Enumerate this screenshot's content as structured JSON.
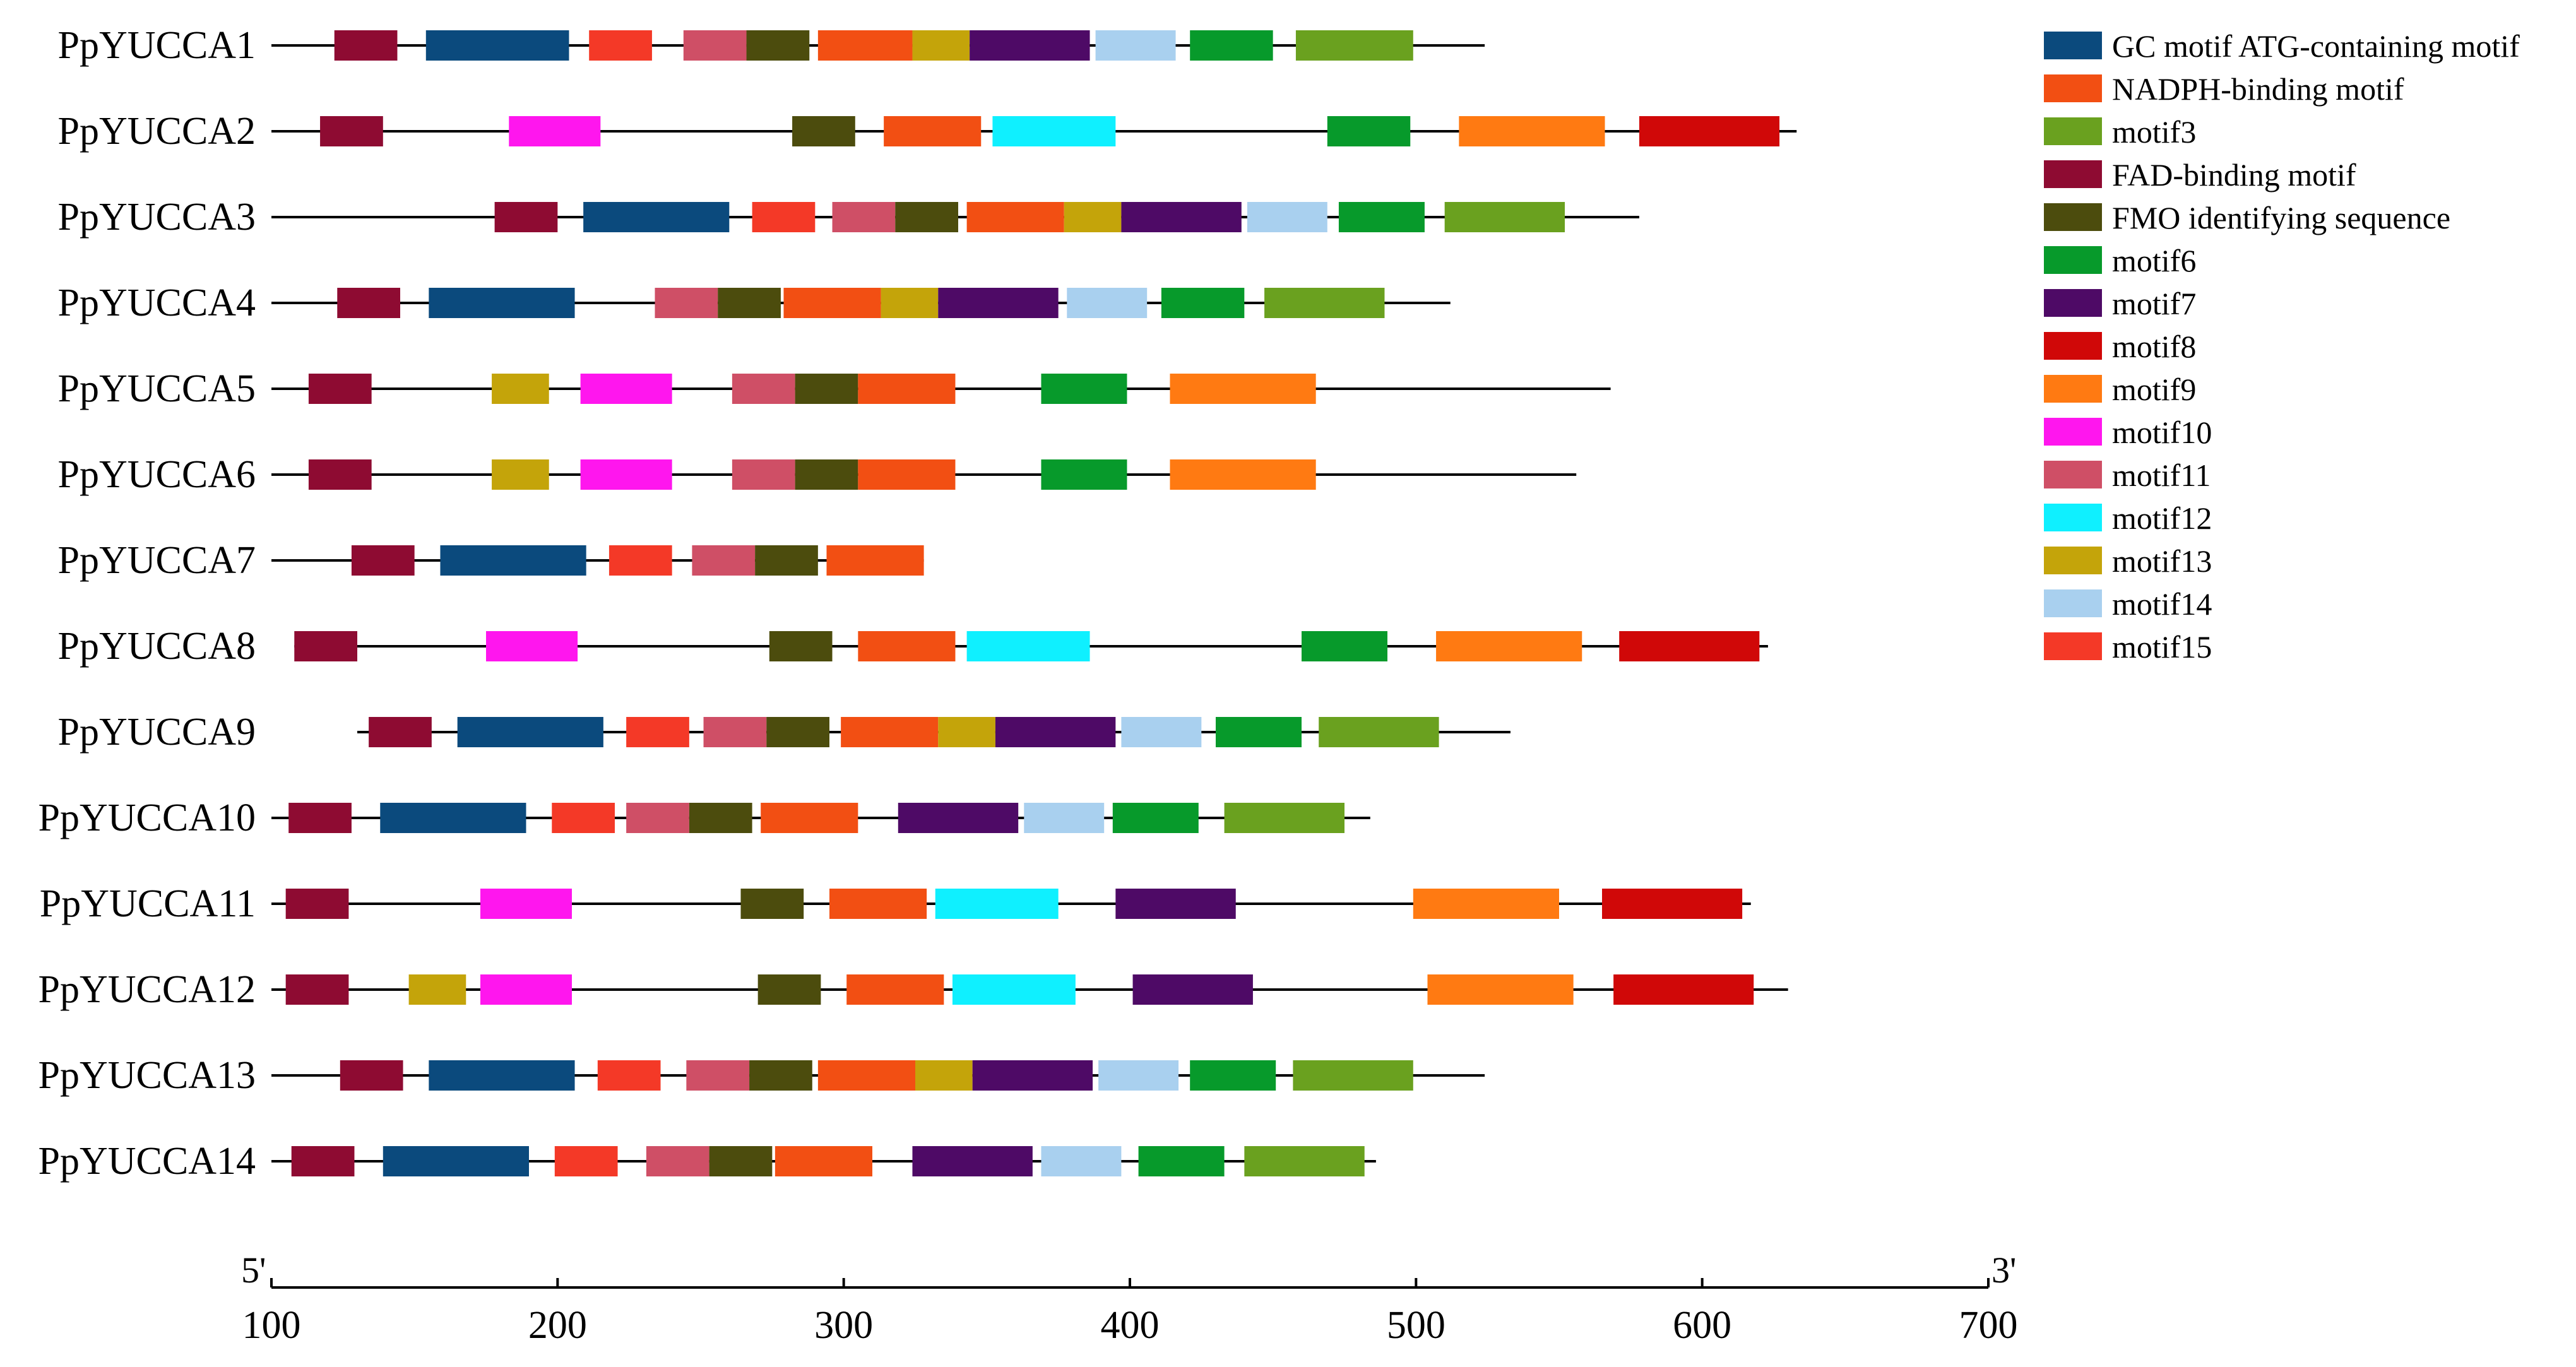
{
  "figure": {
    "type": "motif-diagram",
    "axis": {
      "min": 100,
      "max": 700,
      "ticks": [
        "100",
        "200",
        "300",
        "400",
        "500",
        "600",
        "700"
      ],
      "left_end_label": "5'",
      "right_end_label": "3'"
    },
    "legend": [
      {
        "id": "gc",
        "label": "GC motif ATG-containing motif",
        "color": "#0b4a7d"
      },
      {
        "id": "nadph",
        "label": "NADPH-binding motif",
        "color": "#f24f13"
      },
      {
        "id": "m3",
        "label": "motif3",
        "color": "#6aa11f"
      },
      {
        "id": "fad",
        "label": "FAD-binding motif",
        "color": "#8e0b32"
      },
      {
        "id": "fmo",
        "label": "FMO identifying sequence",
        "color": "#4c4c0d"
      },
      {
        "id": "m6",
        "label": "motif6",
        "color": "#079a2b"
      },
      {
        "id": "m7",
        "label": "motif7",
        "color": "#4e0a66"
      },
      {
        "id": "m8",
        "label": "motif8",
        "color": "#d00808"
      },
      {
        "id": "m9",
        "label": "motif9",
        "color": "#ff7a12"
      },
      {
        "id": "m10",
        "label": "motif10",
        "color": "#ff16ee"
      },
      {
        "id": "m11",
        "label": "motif11",
        "color": "#cf4f66"
      },
      {
        "id": "m12",
        "label": "motif12",
        "color": "#0ff0ff"
      },
      {
        "id": "m13",
        "label": "motif13",
        "color": "#c4a40a"
      },
      {
        "id": "m14",
        "label": "motif14",
        "color": "#a9d0ef"
      },
      {
        "id": "m15",
        "label": "motif15",
        "color": "#f43927"
      }
    ],
    "genes": [
      {
        "name": "PpYUCCA1",
        "start": 100,
        "end": 524,
        "motifs": [
          {
            "motif": "fad",
            "start": 122,
            "end": 144
          },
          {
            "motif": "gc",
            "start": 154,
            "end": 204
          },
          {
            "motif": "m15",
            "start": 211,
            "end": 233
          },
          {
            "motif": "m11",
            "start": 244,
            "end": 266
          },
          {
            "motif": "fmo",
            "start": 266,
            "end": 288
          },
          {
            "motif": "nadph",
            "start": 291,
            "end": 324
          },
          {
            "motif": "m13",
            "start": 324,
            "end": 344
          },
          {
            "motif": "m7",
            "start": 344,
            "end": 386
          },
          {
            "motif": "m14",
            "start": 388,
            "end": 416
          },
          {
            "motif": "m6",
            "start": 421,
            "end": 450
          },
          {
            "motif": "m3",
            "start": 458,
            "end": 499
          }
        ]
      },
      {
        "name": "PpYUCCA2",
        "start": 100,
        "end": 633,
        "motifs": [
          {
            "motif": "fad",
            "start": 117,
            "end": 139
          },
          {
            "motif": "m10",
            "start": 183,
            "end": 215
          },
          {
            "motif": "fmo",
            "start": 282,
            "end": 304
          },
          {
            "motif": "nadph",
            "start": 314,
            "end": 348
          },
          {
            "motif": "m12",
            "start": 352,
            "end": 395
          },
          {
            "motif": "m6",
            "start": 469,
            "end": 498
          },
          {
            "motif": "m9",
            "start": 515,
            "end": 566
          },
          {
            "motif": "m8",
            "start": 578,
            "end": 627
          }
        ]
      },
      {
        "name": "PpYUCCA3",
        "start": 100,
        "end": 578,
        "motifs": [
          {
            "motif": "fad",
            "start": 178,
            "end": 200
          },
          {
            "motif": "gc",
            "start": 209,
            "end": 260
          },
          {
            "motif": "m15",
            "start": 268,
            "end": 290
          },
          {
            "motif": "m11",
            "start": 296,
            "end": 318
          },
          {
            "motif": "fmo",
            "start": 318,
            "end": 340
          },
          {
            "motif": "nadph",
            "start": 343,
            "end": 377
          },
          {
            "motif": "m13",
            "start": 377,
            "end": 397
          },
          {
            "motif": "m7",
            "start": 397,
            "end": 439
          },
          {
            "motif": "m14",
            "start": 441,
            "end": 469
          },
          {
            "motif": "m6",
            "start": 473,
            "end": 503
          },
          {
            "motif": "m3",
            "start": 510,
            "end": 552
          }
        ]
      },
      {
        "name": "PpYUCCA4",
        "start": 100,
        "end": 512,
        "motifs": [
          {
            "motif": "fad",
            "start": 123,
            "end": 145
          },
          {
            "motif": "gc",
            "start": 155,
            "end": 206
          },
          {
            "motif": "m11",
            "start": 234,
            "end": 256
          },
          {
            "motif": "fmo",
            "start": 256,
            "end": 278
          },
          {
            "motif": "nadph",
            "start": 279,
            "end": 313
          },
          {
            "motif": "m13",
            "start": 313,
            "end": 333
          },
          {
            "motif": "m7",
            "start": 333,
            "end": 375
          },
          {
            "motif": "m14",
            "start": 378,
            "end": 406
          },
          {
            "motif": "m6",
            "start": 411,
            "end": 440
          },
          {
            "motif": "m3",
            "start": 447,
            "end": 489
          }
        ]
      },
      {
        "name": "PpYUCCA5",
        "start": 100,
        "end": 568,
        "motifs": [
          {
            "motif": "fad",
            "start": 113,
            "end": 135
          },
          {
            "motif": "m13",
            "start": 177,
            "end": 197
          },
          {
            "motif": "m10",
            "start": 208,
            "end": 240
          },
          {
            "motif": "m11",
            "start": 261,
            "end": 283
          },
          {
            "motif": "fmo",
            "start": 283,
            "end": 305
          },
          {
            "motif": "nadph",
            "start": 305,
            "end": 339
          },
          {
            "motif": "m6",
            "start": 369,
            "end": 399
          },
          {
            "motif": "m9",
            "start": 414,
            "end": 465
          }
        ]
      },
      {
        "name": "PpYUCCA6",
        "start": 100,
        "end": 556,
        "motifs": [
          {
            "motif": "fad",
            "start": 113,
            "end": 135
          },
          {
            "motif": "m13",
            "start": 177,
            "end": 197
          },
          {
            "motif": "m10",
            "start": 208,
            "end": 240
          },
          {
            "motif": "m11",
            "start": 261,
            "end": 283
          },
          {
            "motif": "fmo",
            "start": 283,
            "end": 305
          },
          {
            "motif": "nadph",
            "start": 305,
            "end": 339
          },
          {
            "motif": "m6",
            "start": 369,
            "end": 399
          },
          {
            "motif": "m9",
            "start": 414,
            "end": 465
          }
        ]
      },
      {
        "name": "PpYUCCA7",
        "start": 100,
        "end": 328,
        "motifs": [
          {
            "motif": "fad",
            "start": 128,
            "end": 150
          },
          {
            "motif": "gc",
            "start": 159,
            "end": 210
          },
          {
            "motif": "m15",
            "start": 218,
            "end": 240
          },
          {
            "motif": "m11",
            "start": 247,
            "end": 269
          },
          {
            "motif": "fmo",
            "start": 269,
            "end": 291
          },
          {
            "motif": "nadph",
            "start": 294,
            "end": 328
          }
        ]
      },
      {
        "name": "PpYUCCA8",
        "start": 108,
        "end": 623,
        "motifs": [
          {
            "motif": "fad",
            "start": 108,
            "end": 130
          },
          {
            "motif": "m10",
            "start": 175,
            "end": 207
          },
          {
            "motif": "fmo",
            "start": 274,
            "end": 296
          },
          {
            "motif": "nadph",
            "start": 305,
            "end": 339
          },
          {
            "motif": "m12",
            "start": 343,
            "end": 386
          },
          {
            "motif": "m6",
            "start": 460,
            "end": 490
          },
          {
            "motif": "m9",
            "start": 507,
            "end": 558
          },
          {
            "motif": "m8",
            "start": 571,
            "end": 620
          }
        ]
      },
      {
        "name": "PpYUCCA9",
        "start": 130,
        "end": 533,
        "motifs": [
          {
            "motif": "fad",
            "start": 134,
            "end": 156
          },
          {
            "motif": "gc",
            "start": 165,
            "end": 216
          },
          {
            "motif": "m15",
            "start": 224,
            "end": 246
          },
          {
            "motif": "m11",
            "start": 251,
            "end": 273
          },
          {
            "motif": "fmo",
            "start": 273,
            "end": 295
          },
          {
            "motif": "nadph",
            "start": 299,
            "end": 333
          },
          {
            "motif": "m13",
            "start": 333,
            "end": 353
          },
          {
            "motif": "m7",
            "start": 353,
            "end": 395
          },
          {
            "motif": "m14",
            "start": 397,
            "end": 425
          },
          {
            "motif": "m6",
            "start": 430,
            "end": 460
          },
          {
            "motif": "m3",
            "start": 466,
            "end": 508
          }
        ]
      },
      {
        "name": "PpYUCCA10",
        "start": 100,
        "end": 484,
        "motifs": [
          {
            "motif": "fad",
            "start": 106,
            "end": 128
          },
          {
            "motif": "gc",
            "start": 138,
            "end": 189
          },
          {
            "motif": "m15",
            "start": 198,
            "end": 220
          },
          {
            "motif": "m11",
            "start": 224,
            "end": 246
          },
          {
            "motif": "fmo",
            "start": 246,
            "end": 268
          },
          {
            "motif": "nadph",
            "start": 271,
            "end": 305
          },
          {
            "motif": "m7",
            "start": 319,
            "end": 361
          },
          {
            "motif": "m14",
            "start": 363,
            "end": 391
          },
          {
            "motif": "m6",
            "start": 394,
            "end": 424
          },
          {
            "motif": "m3",
            "start": 433,
            "end": 475
          }
        ]
      },
      {
        "name": "PpYUCCA11",
        "start": 100,
        "end": 617,
        "motifs": [
          {
            "motif": "fad",
            "start": 105,
            "end": 127
          },
          {
            "motif": "m10",
            "start": 173,
            "end": 205
          },
          {
            "motif": "fmo",
            "start": 264,
            "end": 286
          },
          {
            "motif": "nadph",
            "start": 295,
            "end": 329
          },
          {
            "motif": "m12",
            "start": 332,
            "end": 375
          },
          {
            "motif": "m7",
            "start": 395,
            "end": 437
          },
          {
            "motif": "m9",
            "start": 499,
            "end": 550
          },
          {
            "motif": "m8",
            "start": 565,
            "end": 614
          }
        ]
      },
      {
        "name": "PpYUCCA12",
        "start": 100,
        "end": 630,
        "motifs": [
          {
            "motif": "fad",
            "start": 105,
            "end": 127
          },
          {
            "motif": "m13",
            "start": 148,
            "end": 168
          },
          {
            "motif": "m10",
            "start": 173,
            "end": 205
          },
          {
            "motif": "fmo",
            "start": 270,
            "end": 292
          },
          {
            "motif": "nadph",
            "start": 301,
            "end": 335
          },
          {
            "motif": "m12",
            "start": 338,
            "end": 381
          },
          {
            "motif": "m7",
            "start": 401,
            "end": 443
          },
          {
            "motif": "m9",
            "start": 504,
            "end": 555
          },
          {
            "motif": "m8",
            "start": 569,
            "end": 618
          }
        ]
      },
      {
        "name": "PpYUCCA13",
        "start": 100,
        "end": 524,
        "motifs": [
          {
            "motif": "fad",
            "start": 124,
            "end": 146
          },
          {
            "motif": "gc",
            "start": 155,
            "end": 206
          },
          {
            "motif": "m15",
            "start": 214,
            "end": 236
          },
          {
            "motif": "m11",
            "start": 245,
            "end": 267
          },
          {
            "motif": "fmo",
            "start": 267,
            "end": 289
          },
          {
            "motif": "nadph",
            "start": 291,
            "end": 325
          },
          {
            "motif": "m13",
            "start": 325,
            "end": 345
          },
          {
            "motif": "m7",
            "start": 345,
            "end": 387
          },
          {
            "motif": "m14",
            "start": 389,
            "end": 417
          },
          {
            "motif": "m6",
            "start": 421,
            "end": 451
          },
          {
            "motif": "m3",
            "start": 457,
            "end": 499
          }
        ]
      },
      {
        "name": "PpYUCCA14",
        "start": 100,
        "end": 486,
        "motifs": [
          {
            "motif": "fad",
            "start": 107,
            "end": 129
          },
          {
            "motif": "gc",
            "start": 139,
            "end": 190
          },
          {
            "motif": "m15",
            "start": 199,
            "end": 221
          },
          {
            "motif": "m11",
            "start": 231,
            "end": 253
          },
          {
            "motif": "fmo",
            "start": 253,
            "end": 275
          },
          {
            "motif": "nadph",
            "start": 276,
            "end": 310
          },
          {
            "motif": "m7",
            "start": 324,
            "end": 366
          },
          {
            "motif": "m14",
            "start": 369,
            "end": 397
          },
          {
            "motif": "m6",
            "start": 403,
            "end": 433
          },
          {
            "motif": "m3",
            "start": 440,
            "end": 482
          }
        ]
      }
    ]
  }
}
